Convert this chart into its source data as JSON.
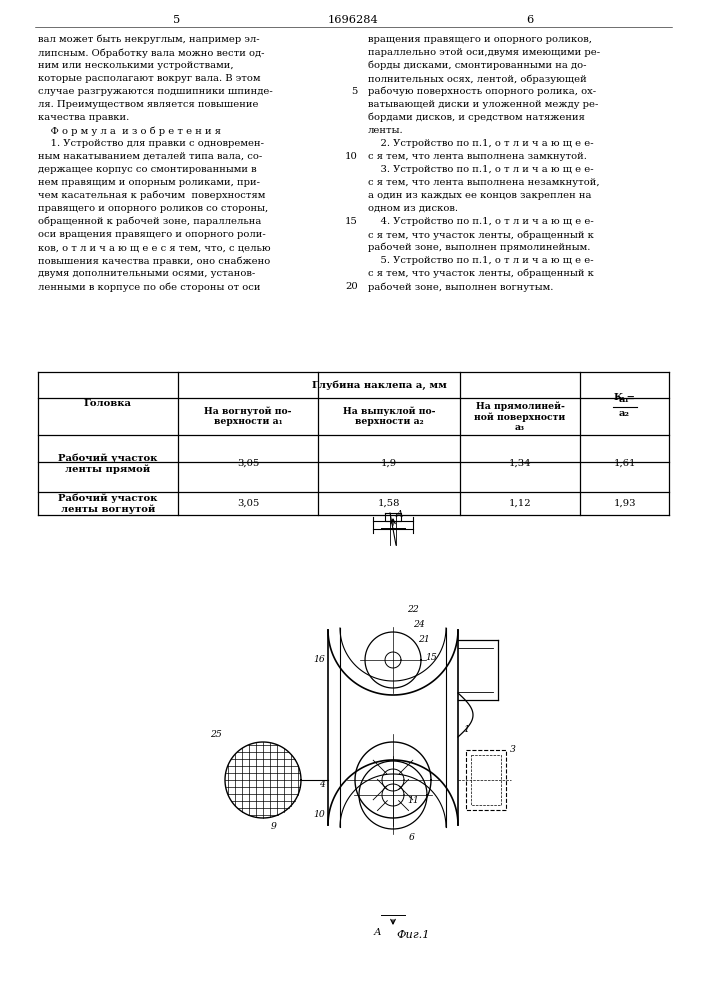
{
  "page_num_left": "5",
  "page_num_center": "1696284",
  "page_num_right": "6",
  "left_col": [
    "вал может быть некруглым, например эл-",
    "липсным. Обработку вала можно вести од-",
    "ним или несколькими устройствами,",
    "которые располагают вокруг вала. В этом",
    "случае разгружаются подшипники шпинде-",
    "ля. Преимуществом является повышение",
    "качества правки.",
    "    Ф о р м у л а  и з о б р е т е н и я",
    "    1. Устройство для правки с одновремен-",
    "ным накатыванием деталей типа вала, со-",
    "держащее корпус со смонтированными в",
    "нем правящим и опорным роликами, при-",
    "чем касательная к рабочим  поверхностям",
    "правящего и опорного роликов со стороны,",
    "обращенной к рабочей зоне, параллельна",
    "оси вращения правящего и опорного роли-",
    "ков, о т л и ч а ю щ е е с я тем, что, с целью",
    "повышения качества правки, оно снабжено",
    "двумя дополнительными осями, установ-",
    "ленными в корпусе по обе стороны от оси"
  ],
  "line_num_rows": [
    4,
    9,
    14,
    19
  ],
  "line_nums": [
    "5",
    "10",
    "15",
    "20"
  ],
  "right_col": [
    "вращения правящего и опорного роликов,",
    "параллельно этой оси,двумя имеющими ре-",
    "борды дисками, смонтированными на до-",
    "полнительных осях, лентой, образующей",
    "рабочую поверхность опорного ролика, ох-",
    "ватывающей диски и уложенной между ре-",
    "бордами дисков, и средством натяжения",
    "ленты.",
    "    2. Устройство по п.1, о т л и ч а ю щ е е-",
    "с я тем, что лента выполнена замкнутой.",
    "    3. Устройство по п.1, о т л и ч а ю щ е е-",
    "с я тем, что лента выполнена незамкнутой,",
    "а один из каждых ее концов закреплен на",
    "одном из дисков.",
    "    4. Устройство по п.1, о т л и ч а ю щ е е-",
    "с я тем, что участок ленты, обращенный к",
    "рабочей зоне, выполнен прямолинейным.",
    "    5. Устройство по п.1, о т л и ч а ю щ е е-",
    "с я тем, что участок ленты, обращенный к",
    "рабочей зоне, выполнен вогнутым."
  ],
  "bg": "#ffffff",
  "fg": "#000000",
  "fs": 7.2,
  "lh": 13.0
}
